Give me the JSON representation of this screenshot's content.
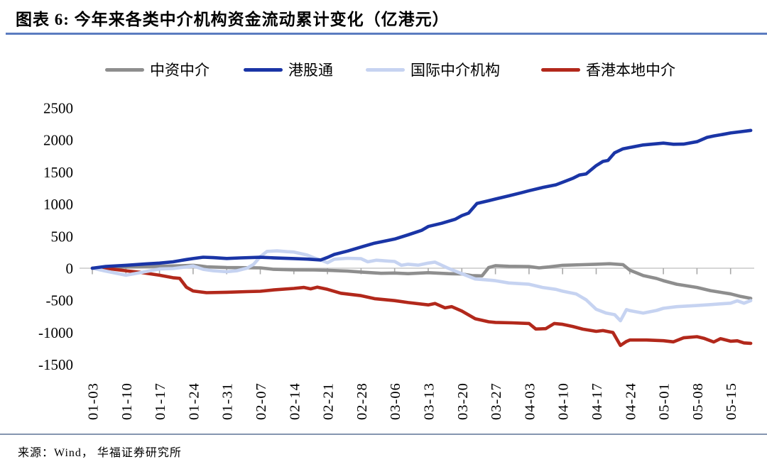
{
  "title": "图表 6:  今年来各类中介机构资金流动累计变化（亿港元）",
  "source": "来源：Wind， 华福证券研究所",
  "colors": {
    "title_rule": "#5b7cc0",
    "footer_rule": "#8595b0",
    "zero_axis": "#c9c9c9",
    "tick": "#a9a9a9",
    "text": "#000000"
  },
  "chart_data": {
    "type": "line",
    "title": "今年来各类中介机构资金流动累计变化（亿港元）",
    "unit": "亿港元",
    "legend_position": "top",
    "grid": "zero-line-only",
    "x_axis": {
      "tick_labels": [
        "01-03",
        "01-10",
        "01-17",
        "01-24",
        "01-31",
        "02-07",
        "02-14",
        "02-21",
        "02-28",
        "03-06",
        "03-13",
        "03-20",
        "03-27",
        "04-03",
        "04-10",
        "04-17",
        "04-24",
        "05-01",
        "05-08",
        "05-15"
      ],
      "note": "weekly ticks, series sampled in week units (0 = 01-03)"
    },
    "y_axis": {
      "ticks": [
        2500,
        2000,
        1500,
        1000,
        500,
        0,
        -500,
        -1000,
        -1500
      ],
      "range": [
        -1500,
        2500
      ]
    },
    "series": [
      {
        "id": "china-intermediary",
        "label": "中资中介",
        "color": "#8e8e8e",
        "points": [
          [
            0,
            0
          ],
          [
            0.6,
            15
          ],
          [
            1,
            20
          ],
          [
            1.6,
            25
          ],
          [
            2,
            30
          ],
          [
            2.6,
            38
          ],
          [
            3,
            45
          ],
          [
            3.2,
            35
          ],
          [
            3.4,
            22
          ],
          [
            4,
            10
          ],
          [
            4.6,
            8
          ],
          [
            5,
            5
          ],
          [
            5.4,
            -18
          ],
          [
            6,
            -25
          ],
          [
            6.6,
            -28
          ],
          [
            7,
            -32
          ],
          [
            7.6,
            -45
          ],
          [
            8,
            -60
          ],
          [
            8.6,
            -80
          ],
          [
            9,
            -75
          ],
          [
            9.4,
            -85
          ],
          [
            10,
            -70
          ],
          [
            10.6,
            -85
          ],
          [
            11,
            -90
          ],
          [
            11.3,
            -115
          ],
          [
            11.6,
            -120
          ],
          [
            11.8,
            10
          ],
          [
            12,
            40
          ],
          [
            12.4,
            30
          ],
          [
            12.8,
            28
          ],
          [
            13,
            25
          ],
          [
            13.3,
            5
          ],
          [
            13.6,
            20
          ],
          [
            14,
            45
          ],
          [
            14.6,
            55
          ],
          [
            15,
            62
          ],
          [
            15.4,
            70
          ],
          [
            15.8,
            55
          ],
          [
            16,
            -30
          ],
          [
            16.4,
            -115
          ],
          [
            16.8,
            -160
          ],
          [
            17,
            -195
          ],
          [
            17.4,
            -250
          ],
          [
            18,
            -300
          ],
          [
            18.4,
            -350
          ],
          [
            19,
            -400
          ],
          [
            19.3,
            -440
          ],
          [
            19.6,
            -470
          ]
        ]
      },
      {
        "id": "stock-connect",
        "label": "港股通",
        "color": "#1a35a6",
        "points": [
          [
            0,
            0
          ],
          [
            0.4,
            28
          ],
          [
            1,
            45
          ],
          [
            1.6,
            68
          ],
          [
            2,
            80
          ],
          [
            2.4,
            100
          ],
          [
            2.8,
            135
          ],
          [
            3,
            150
          ],
          [
            3.3,
            172
          ],
          [
            3.6,
            165
          ],
          [
            4,
            152
          ],
          [
            4.4,
            160
          ],
          [
            5,
            170
          ],
          [
            5.4,
            162
          ],
          [
            6,
            150
          ],
          [
            6.4,
            142
          ],
          [
            6.8,
            128
          ],
          [
            7,
            168
          ],
          [
            7.2,
            215
          ],
          [
            7.6,
            268
          ],
          [
            8,
            330
          ],
          [
            8.4,
            390
          ],
          [
            8.8,
            432
          ],
          [
            9,
            455
          ],
          [
            9.4,
            520
          ],
          [
            9.8,
            590
          ],
          [
            10,
            650
          ],
          [
            10.4,
            700
          ],
          [
            10.8,
            762
          ],
          [
            11,
            820
          ],
          [
            11.2,
            858
          ],
          [
            11.45,
            1010
          ],
          [
            11.8,
            1052
          ],
          [
            12,
            1078
          ],
          [
            12.4,
            1128
          ],
          [
            12.8,
            1180
          ],
          [
            13,
            1208
          ],
          [
            13.4,
            1258
          ],
          [
            13.8,
            1300
          ],
          [
            14,
            1340
          ],
          [
            14.3,
            1400
          ],
          [
            14.5,
            1452
          ],
          [
            14.7,
            1470
          ],
          [
            15,
            1600
          ],
          [
            15.2,
            1665
          ],
          [
            15.35,
            1680
          ],
          [
            15.55,
            1800
          ],
          [
            15.8,
            1862
          ],
          [
            16,
            1882
          ],
          [
            16.4,
            1922
          ],
          [
            16.8,
            1940
          ],
          [
            17,
            1950
          ],
          [
            17.3,
            1932
          ],
          [
            17.6,
            1935
          ],
          [
            18,
            1972
          ],
          [
            18.3,
            2040
          ],
          [
            18.5,
            2062
          ],
          [
            18.8,
            2088
          ],
          [
            19,
            2108
          ],
          [
            19.3,
            2128
          ],
          [
            19.6,
            2148
          ]
        ]
      },
      {
        "id": "international-intermediary",
        "label": "国际中介机构",
        "color": "#c6d3f1",
        "points": [
          [
            0,
            0
          ],
          [
            0.4,
            -45
          ],
          [
            1,
            -110
          ],
          [
            1.4,
            -72
          ],
          [
            2,
            -12
          ],
          [
            2.4,
            -5
          ],
          [
            2.8,
            20
          ],
          [
            3,
            35
          ],
          [
            3.3,
            -18
          ],
          [
            3.6,
            -40
          ],
          [
            4,
            -55
          ],
          [
            4.3,
            -40
          ],
          [
            4.6,
            0
          ],
          [
            4.8,
            60
          ],
          [
            5,
            180
          ],
          [
            5.2,
            262
          ],
          [
            5.5,
            270
          ],
          [
            5.8,
            258
          ],
          [
            6,
            252
          ],
          [
            6.2,
            228
          ],
          [
            6.4,
            205
          ],
          [
            6.6,
            162
          ],
          [
            6.8,
            128
          ],
          [
            7,
            85
          ],
          [
            7.2,
            140
          ],
          [
            7.6,
            155
          ],
          [
            8,
            148
          ],
          [
            8.2,
            100
          ],
          [
            8.45,
            125
          ],
          [
            8.8,
            112
          ],
          [
            9,
            105
          ],
          [
            9.2,
            45
          ],
          [
            9.4,
            62
          ],
          [
            9.7,
            48
          ],
          [
            10,
            80
          ],
          [
            10.2,
            95
          ],
          [
            10.6,
            -2
          ],
          [
            11,
            -85
          ],
          [
            11.4,
            -168
          ],
          [
            11.8,
            -185
          ],
          [
            12,
            -195
          ],
          [
            12.4,
            -230
          ],
          [
            13,
            -250
          ],
          [
            13.4,
            -300
          ],
          [
            13.8,
            -330
          ],
          [
            14,
            -358
          ],
          [
            14.4,
            -400
          ],
          [
            14.7,
            -492
          ],
          [
            15,
            -640
          ],
          [
            15.3,
            -700
          ],
          [
            15.55,
            -725
          ],
          [
            15.72,
            -820
          ],
          [
            15.9,
            -645
          ],
          [
            16,
            -662
          ],
          [
            16.4,
            -700
          ],
          [
            16.8,
            -658
          ],
          [
            17,
            -625
          ],
          [
            17.4,
            -600
          ],
          [
            18,
            -582
          ],
          [
            18.4,
            -568
          ],
          [
            18.8,
            -552
          ],
          [
            19,
            -545
          ],
          [
            19.2,
            -508
          ],
          [
            19.4,
            -545
          ],
          [
            19.6,
            -505
          ]
        ]
      },
      {
        "id": "hk-local-intermediary",
        "label": "香港本地中介",
        "color": "#b2281b",
        "points": [
          [
            0,
            0
          ],
          [
            0.2,
            -18
          ],
          [
            0.5,
            -8
          ],
          [
            1,
            -40
          ],
          [
            1.4,
            -62
          ],
          [
            2,
            -110
          ],
          [
            2.4,
            -148
          ],
          [
            2.6,
            -158
          ],
          [
            2.8,
            -295
          ],
          [
            3,
            -355
          ],
          [
            3.4,
            -382
          ],
          [
            4,
            -375
          ],
          [
            4.6,
            -365
          ],
          [
            5,
            -360
          ],
          [
            5.4,
            -338
          ],
          [
            6,
            -315
          ],
          [
            6.3,
            -300
          ],
          [
            6.5,
            -322
          ],
          [
            6.7,
            -295
          ],
          [
            7,
            -330
          ],
          [
            7.4,
            -390
          ],
          [
            8,
            -428
          ],
          [
            8.4,
            -475
          ],
          [
            9,
            -505
          ],
          [
            9.4,
            -535
          ],
          [
            10,
            -572
          ],
          [
            10.2,
            -550
          ],
          [
            10.5,
            -618
          ],
          [
            10.7,
            -600
          ],
          [
            11,
            -668
          ],
          [
            11.4,
            -788
          ],
          [
            11.8,
            -835
          ],
          [
            12,
            -845
          ],
          [
            12.5,
            -852
          ],
          [
            13,
            -862
          ],
          [
            13.2,
            -948
          ],
          [
            13.5,
            -942
          ],
          [
            13.75,
            -862
          ],
          [
            14,
            -875
          ],
          [
            14.3,
            -908
          ],
          [
            14.6,
            -950
          ],
          [
            15,
            -985
          ],
          [
            15.2,
            -972
          ],
          [
            15.5,
            -1002
          ],
          [
            15.72,
            -1205
          ],
          [
            15.9,
            -1142
          ],
          [
            16,
            -1120
          ],
          [
            16.5,
            -1120
          ],
          [
            17,
            -1130
          ],
          [
            17.3,
            -1148
          ],
          [
            17.6,
            -1085
          ],
          [
            18,
            -1068
          ],
          [
            18.2,
            -1092
          ],
          [
            18.5,
            -1150
          ],
          [
            18.7,
            -1098
          ],
          [
            19,
            -1138
          ],
          [
            19.2,
            -1132
          ],
          [
            19.4,
            -1165
          ],
          [
            19.6,
            -1172
          ]
        ]
      }
    ]
  }
}
